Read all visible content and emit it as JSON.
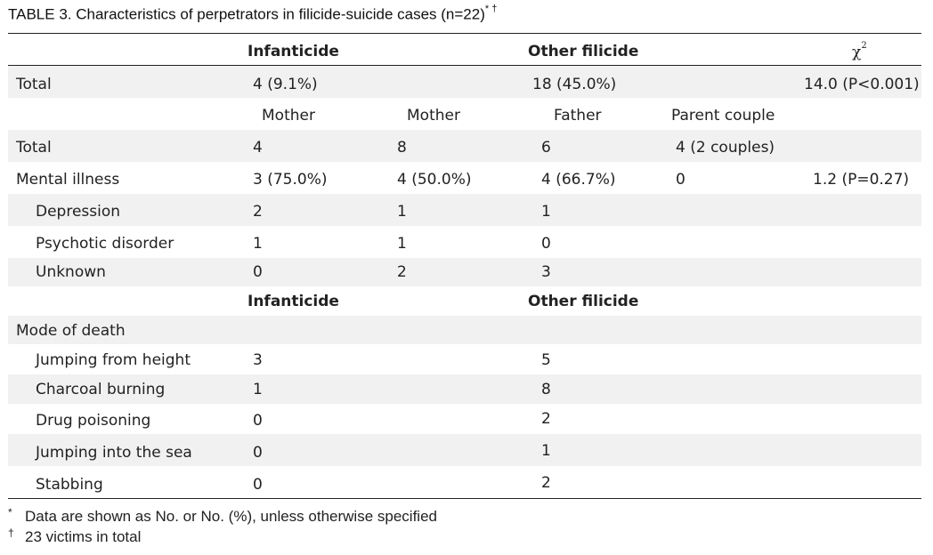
{
  "title": {
    "text": "TABLE 3.  Characteristics of perpetrators in filicide-suicide cases (n=22)",
    "marks": "* †"
  },
  "header": {
    "infanticide": "Infanticide",
    "other_filicide": "Other filicide",
    "chi_symbol": "χ",
    "chi_sup": "2"
  },
  "total_row": {
    "label": "Total",
    "infanticide": "4 (9.1%)",
    "other": "18 (45.0%)",
    "chi": "14.0 (P<0.001)"
  },
  "subheader": {
    "c1": "Mother",
    "c2": "Mother",
    "c3": "Father",
    "c4": "Parent couple"
  },
  "rows": [
    {
      "label": "Total",
      "c1": "4",
      "c2": "8",
      "c3": "6",
      "c4": "4 (2 couples)",
      "chi": ""
    },
    {
      "label": "Mental illness",
      "c1": "3 (75.0%)",
      "c2": "4 (50.0%)",
      "c3": "4 (66.7%)",
      "c4": "0",
      "chi": "1.2 (P=0.27)"
    },
    {
      "label": "Depression",
      "c1": "2",
      "c2": "1",
      "c3": "1",
      "c4": "",
      "chi": ""
    },
    {
      "label": "Psychotic disorder",
      "c1": "1",
      "c2": "1",
      "c3": "0",
      "c4": "",
      "chi": ""
    },
    {
      "label": "Unknown",
      "c1": "0",
      "c2": "2",
      "c3": "3",
      "c4": "",
      "chi": ""
    }
  ],
  "header2": {
    "infanticide": "Infanticide",
    "other_filicide": "Other filicide"
  },
  "mode_label": "Mode of death",
  "mode_rows": [
    {
      "label": "Jumping from height",
      "infanticide": "3",
      "other": "5"
    },
    {
      "label": "Charcoal burning",
      "infanticide": "1",
      "other": "8"
    },
    {
      "label": "Drug poisoning",
      "infanticide": "0",
      "other": "2"
    },
    {
      "label": "Jumping into the sea",
      "infanticide": "0",
      "other": "1"
    },
    {
      "label": "Stabbing",
      "infanticide": "0",
      "other": "2"
    }
  ],
  "footnotes": [
    {
      "mark": "*",
      "text": "Data are shown as No. or No. (%), unless otherwise specified"
    },
    {
      "mark": "†",
      "text": "23 victims in total"
    }
  ]
}
